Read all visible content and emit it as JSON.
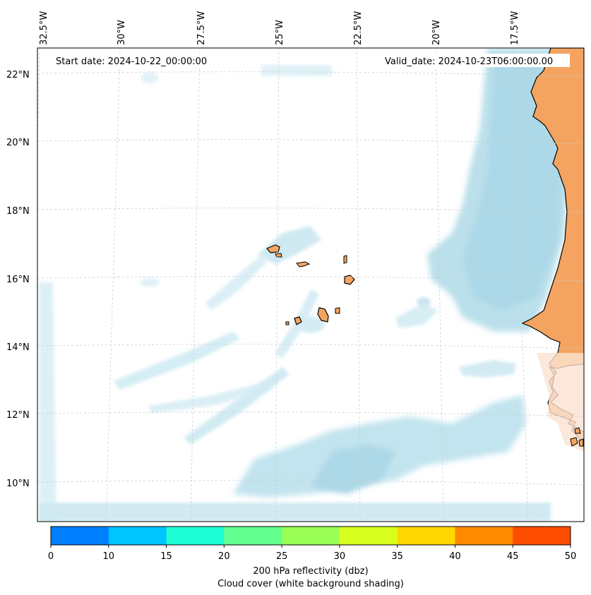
{
  "map": {
    "start_date": "Start date: 2024-10-22_00:00:00",
    "valid_date": "Valid_date: 2024-10-23T06:00:00.00",
    "lon_labels": [
      "32.5°W",
      "30°W",
      "27.5°W",
      "25°W",
      "22.5°W",
      "20°W",
      "17.5°W"
    ],
    "lat_labels": [
      "22°N",
      "20°N",
      "18°N",
      "16°N",
      "14°N",
      "12°N",
      "10°N"
    ],
    "extent": {
      "lon_min": -33,
      "lon_max": -16,
      "lat_min": 9,
      "lat_max": 22.8
    },
    "colors": {
      "land": "#f4a460",
      "cloud": "#add8e6",
      "coast": "#000000",
      "grid": "#c8c8c8"
    }
  },
  "colorbar": {
    "label_line1": "200 hPa reflectivity (dbz)",
    "label_line2": "Cloud cover (white background shading)",
    "ticks": [
      "0",
      "10",
      "15",
      "20",
      "25",
      "30",
      "35",
      "40",
      "45",
      "50"
    ],
    "colors": [
      "#007fff",
      "#00c4ff",
      "#1effd8",
      "#61ff8e",
      "#99ff55",
      "#d7ff1e",
      "#ffd600",
      "#ff8a00",
      "#ff4d00"
    ]
  }
}
